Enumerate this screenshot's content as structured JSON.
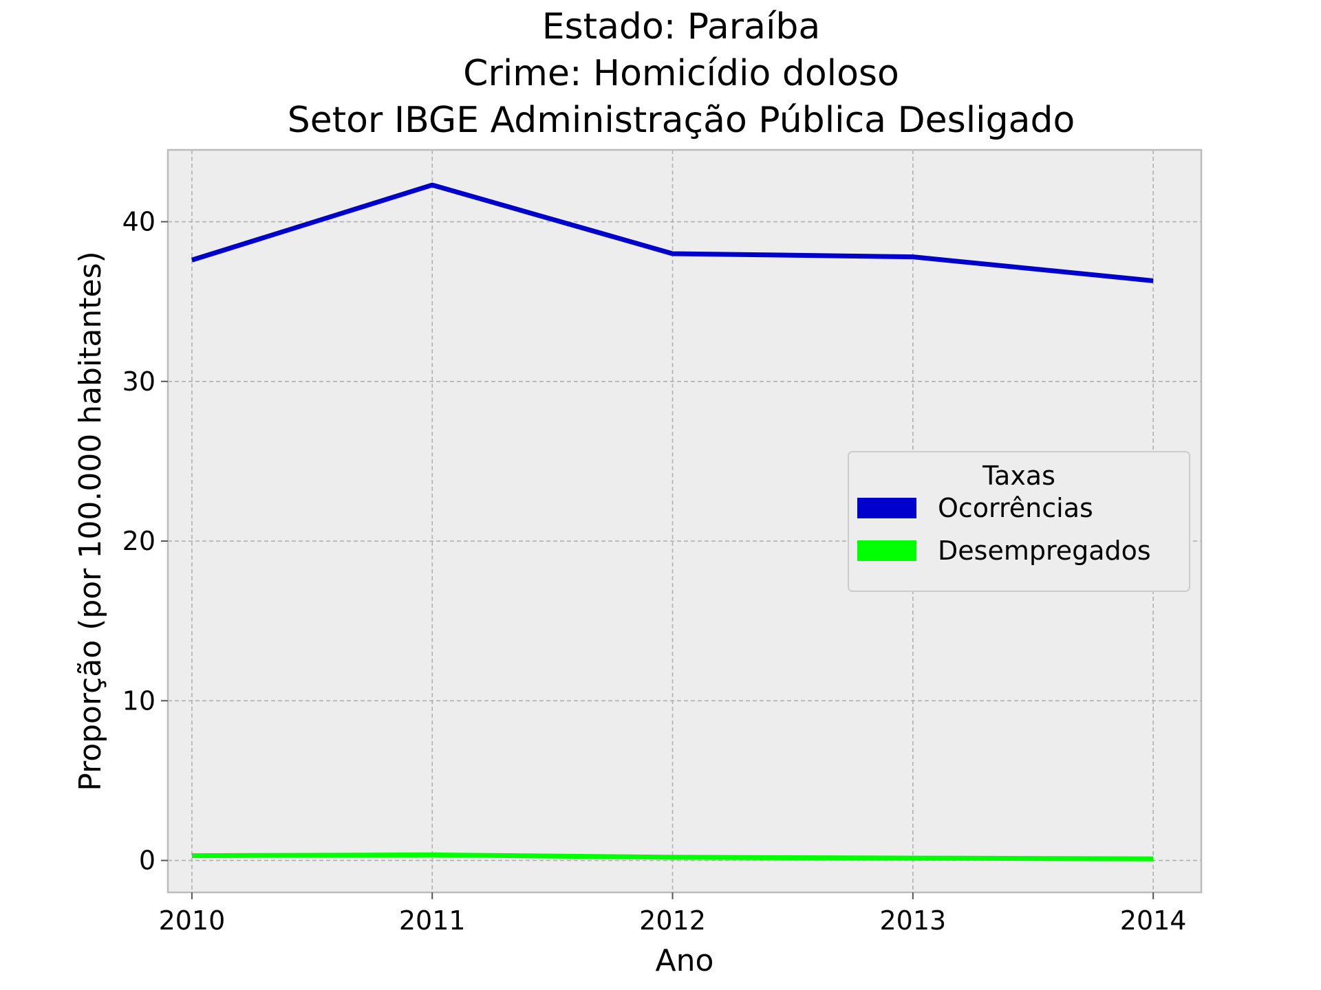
{
  "chart_data": {
    "type": "line",
    "title": [
      "Estado: Paraíba",
      "Crime: Homicídio doloso",
      "Setor IBGE  Administração Pública   Desligado"
    ],
    "xlabel": "Ano",
    "ylabel": "Proporção (por 100.000 habitantes)",
    "x": [
      2010,
      2011,
      2012,
      2013,
      2014
    ],
    "x_tick_labels": [
      "2010",
      "2011",
      "2012",
      "2013",
      "2014"
    ],
    "y_ticks": [
      0,
      10,
      20,
      30,
      40
    ],
    "y_tick_labels": [
      "0",
      "10",
      "20",
      "30",
      "40"
    ],
    "xlim": [
      2009.9,
      2014.2
    ],
    "ylim": [
      -2.0,
      44.5
    ],
    "grid": true,
    "legend": {
      "title": "Taxas",
      "position": "center-right"
    },
    "series": [
      {
        "name": "Ocorrências",
        "color": "#0000cc",
        "values": [
          37.6,
          42.3,
          38.0,
          37.8,
          36.3
        ]
      },
      {
        "name": "Desempregados",
        "color": "#00ff00",
        "values": [
          0.3,
          0.35,
          0.2,
          0.15,
          0.1
        ]
      }
    ]
  }
}
